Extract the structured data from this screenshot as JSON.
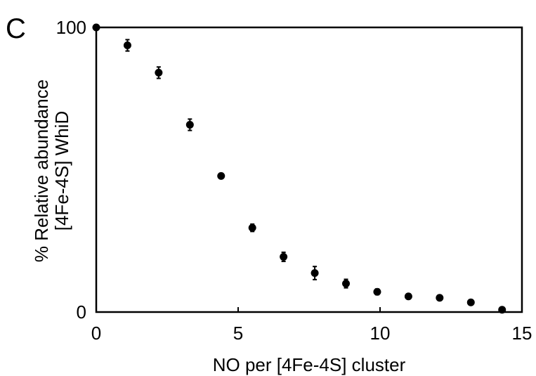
{
  "panel_label": "C",
  "chart_data": {
    "type": "scatter",
    "xlabel": "NO per [4Fe-4S] cluster",
    "ylabel_lines": [
      "% Relative abundance",
      "[4Fe-4S] WhiD"
    ],
    "xlim": [
      0,
      15
    ],
    "ylim": [
      0,
      100
    ],
    "xticks": [
      0,
      5,
      10,
      15
    ],
    "yticks": [
      0,
      100
    ],
    "grid": false,
    "legend": "none",
    "marker_color": "#000000",
    "points": [
      {
        "x": 0.0,
        "y": 100.0,
        "err": 0.0
      },
      {
        "x": 1.1,
        "y": 93.7,
        "err": 2.0
      },
      {
        "x": 2.2,
        "y": 84.1,
        "err": 2.0
      },
      {
        "x": 3.3,
        "y": 65.8,
        "err": 2.0
      },
      {
        "x": 4.4,
        "y": 47.8,
        "err": 0.0
      },
      {
        "x": 5.5,
        "y": 29.6,
        "err": 1.3
      },
      {
        "x": 6.6,
        "y": 19.4,
        "err": 1.6
      },
      {
        "x": 7.7,
        "y": 13.7,
        "err": 2.3
      },
      {
        "x": 8.8,
        "y": 10.0,
        "err": 1.5
      },
      {
        "x": 9.9,
        "y": 7.1,
        "err": 1.0
      },
      {
        "x": 11.0,
        "y": 5.5,
        "err": 0.0
      },
      {
        "x": 12.1,
        "y": 5.0,
        "err": 0.0
      },
      {
        "x": 13.2,
        "y": 3.4,
        "err": 0.0
      },
      {
        "x": 14.3,
        "y": 0.8,
        "err": 0.0
      }
    ]
  }
}
